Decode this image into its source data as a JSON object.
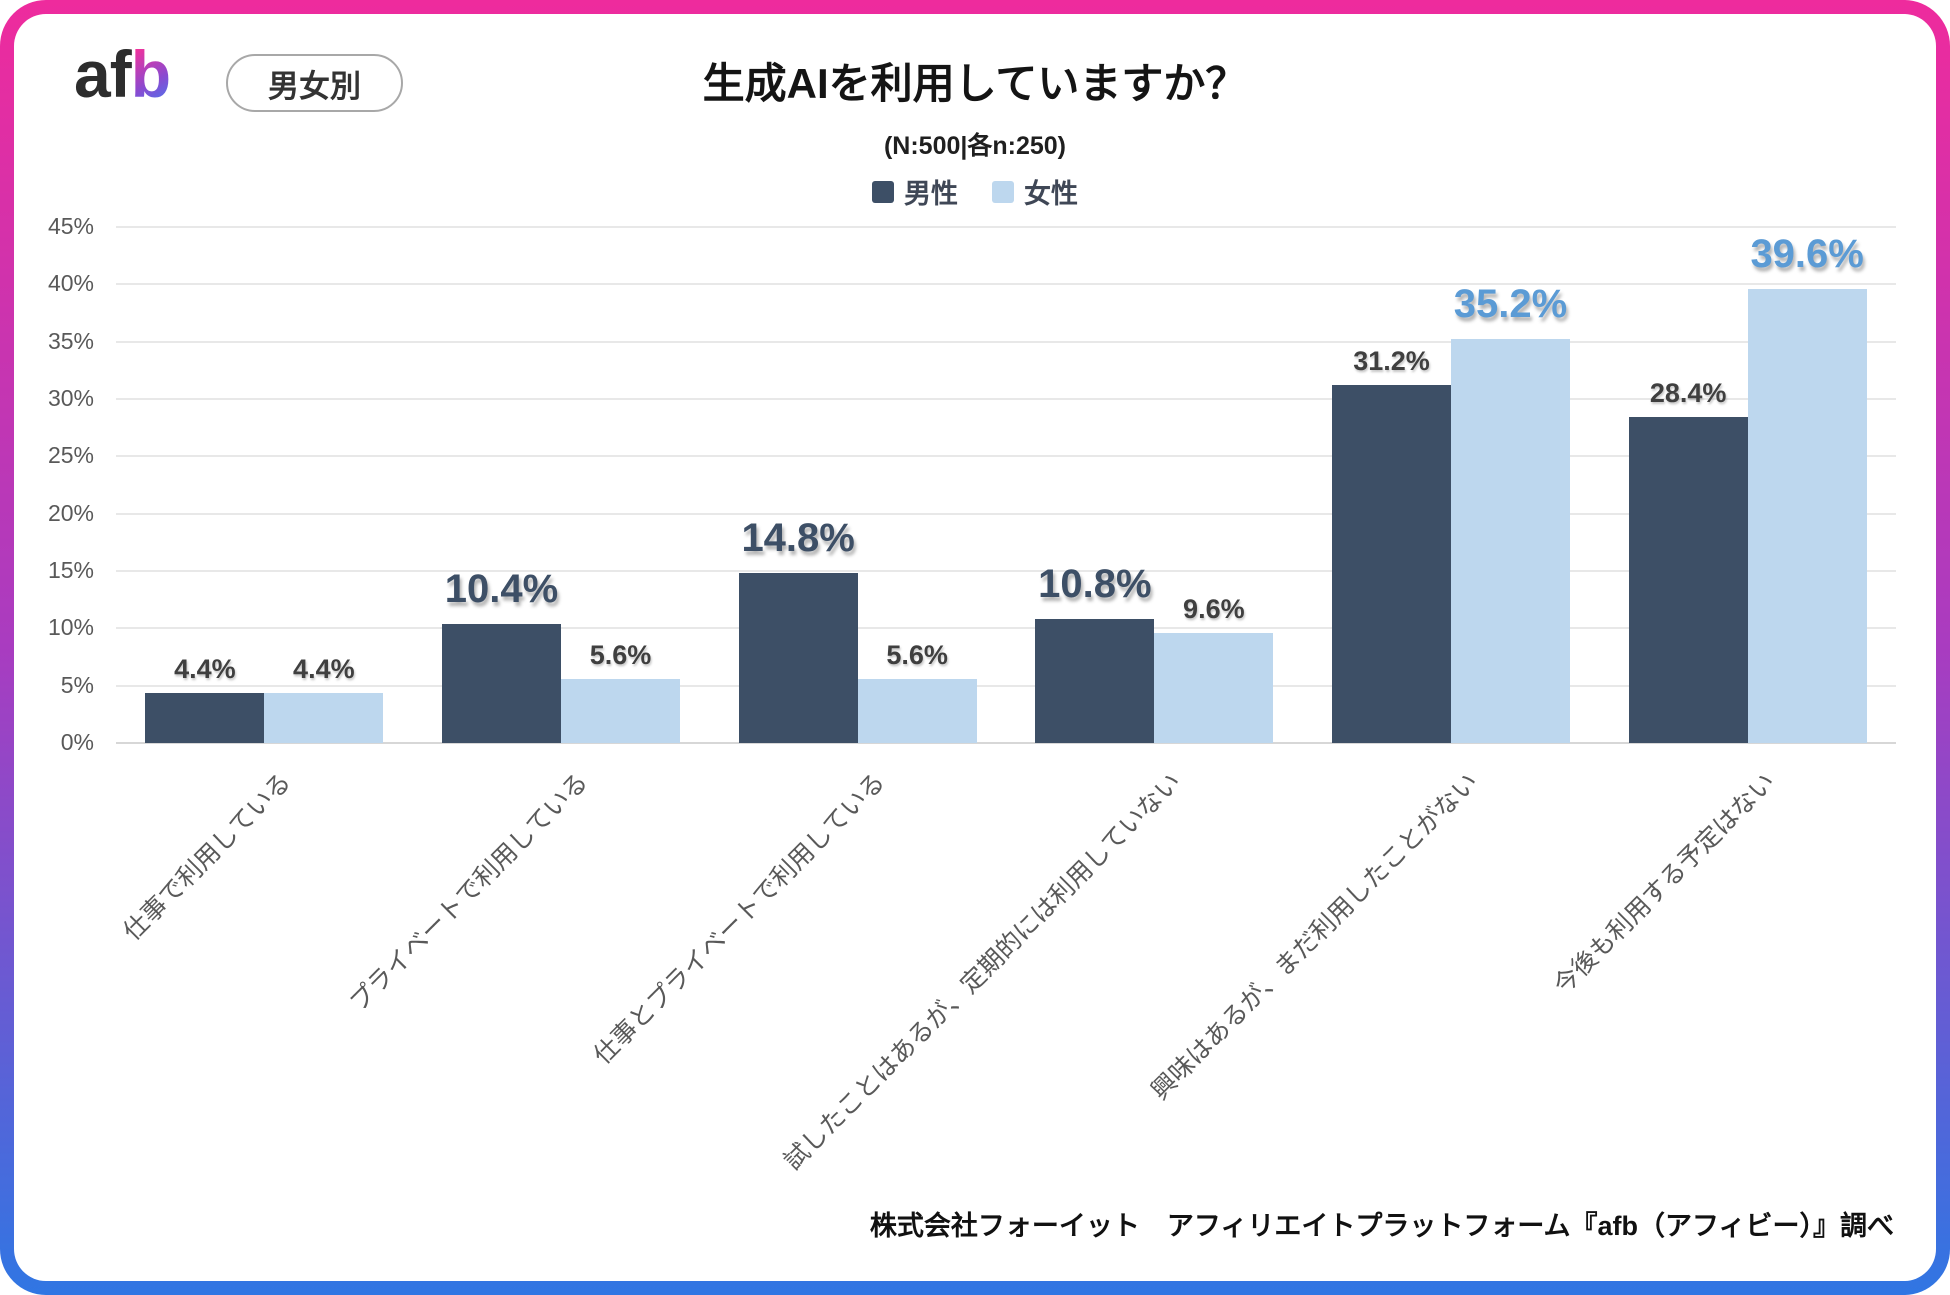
{
  "logo": {
    "text_dark": "af",
    "text_gradient": "b",
    "gradient_colors": {
      "pink": "#f2329b",
      "purple": "#8a4ad0",
      "blue": "#3b82f6"
    }
  },
  "badge_label": "男女別",
  "chart_data": {
    "type": "bar",
    "title": "生成AIを利用していますか？",
    "subtitle": "(N:500|各n:250)",
    "categories": [
      "仕事で利用している",
      "プライベートで利用している",
      "仕事とプライベートで利用している",
      "試したことはあるが、定期的には利用していない",
      "興味はあるが、まだ利用したことがない",
      "今後も利用する予定はない"
    ],
    "series": [
      {
        "name": "男性",
        "key": "male",
        "color": "#3d4f66",
        "emphasis_color": "#3d4f66",
        "values": [
          4.4,
          10.4,
          14.8,
          10.8,
          31.2,
          28.4
        ],
        "emphasized": [
          false,
          true,
          true,
          true,
          false,
          false
        ]
      },
      {
        "name": "女性",
        "key": "female",
        "color": "#bdd7ee",
        "emphasis_color": "#5b9bd5",
        "values": [
          4.4,
          5.6,
          5.6,
          9.6,
          35.2,
          39.6
        ],
        "emphasized": [
          false,
          false,
          false,
          false,
          true,
          true
        ]
      }
    ],
    "xlabel": "",
    "ylabel": "",
    "y_ticks": [
      "0%",
      "5%",
      "10%",
      "15%",
      "20%",
      "25%",
      "30%",
      "35%",
      "40%",
      "45%"
    ],
    "ylim": [
      0,
      45
    ],
    "grid": true,
    "legend_position": "top-center",
    "value_label_color": "#3f3f3f",
    "axis_text_color": "#595959"
  },
  "footer": "株式会社フォーイット　アフィリエイトプラットフォーム『afb（アフィビー）』調べ",
  "frame_colors": {
    "top": "#ee2b9d",
    "middle": "#a93cc0",
    "bottom": "#3076e3"
  }
}
